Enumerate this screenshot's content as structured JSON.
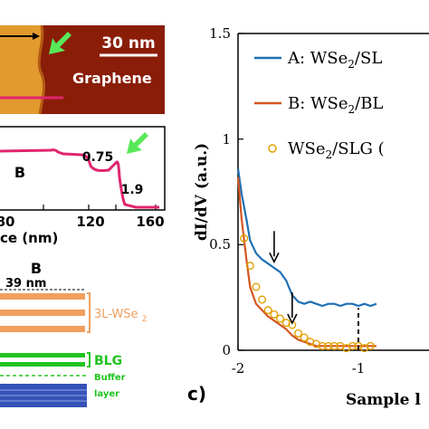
{
  "stm": {
    "scale_label": "30 nm",
    "material_label": "Graphene"
  },
  "profile": {
    "region_label": "B",
    "step_value_1": "0.75",
    "step_value_2": "1.9",
    "x_ticks": [
      "80",
      "120",
      "160"
    ],
    "x_label_fragment": "ce (nm)"
  },
  "schematic": {
    "region_label": "B",
    "width_label": "39 nm",
    "wse2_label": "3L-WSe",
    "wse2_subscript": "2",
    "blg_label": "BLG",
    "buffer_label_1": "Buffer",
    "buffer_label_2": "layer"
  },
  "panel_c": {
    "panel_letter": "c)",
    "ylabel": "dI/dV (a.u.)",
    "xlabel": "Sample l",
    "y_ticks": [
      "0",
      "0.5",
      "1",
      "1.5"
    ],
    "x_ticks": [
      "-2",
      "-1"
    ],
    "legend": [
      {
        "prefix": "A: WSe",
        "sub": "2",
        "suffix": "/SL"
      },
      {
        "prefix": "B: WSe",
        "sub": "2",
        "suffix": "/BL"
      },
      {
        "prefix": "WSe",
        "sub": "2",
        "suffix": "/SLG ("
      }
    ]
  },
  "chart_data": {
    "type": "line",
    "xlabel": "Sample l",
    "ylabel": "dI/dV (a.u.)",
    "xlim": [
      -2,
      -0.85
    ],
    "ylim": [
      0,
      1.5
    ],
    "series": [
      {
        "name": "A: WSe2/SL",
        "color": "#1f6fb4",
        "x": [
          -2.0,
          -1.97,
          -1.93,
          -1.9,
          -1.85,
          -1.8,
          -1.75,
          -1.7,
          -1.65,
          -1.6,
          -1.55,
          -1.5,
          -1.45,
          -1.4,
          -1.35,
          -1.3,
          -1.25,
          -1.2,
          -1.15,
          -1.1,
          -1.05,
          -1.0,
          -0.95,
          -0.9,
          -0.85
        ],
        "y": [
          0.86,
          0.74,
          0.62,
          0.52,
          0.46,
          0.43,
          0.41,
          0.39,
          0.37,
          0.33,
          0.26,
          0.23,
          0.22,
          0.23,
          0.22,
          0.21,
          0.22,
          0.22,
          0.21,
          0.22,
          0.22,
          0.21,
          0.22,
          0.21,
          0.22
        ]
      },
      {
        "name": "B: WSe2/BL",
        "color": "#d4561f",
        "x": [
          -2.0,
          -1.97,
          -1.93,
          -1.9,
          -1.85,
          -1.8,
          -1.75,
          -1.7,
          -1.65,
          -1.6,
          -1.55,
          -1.5,
          -1.45,
          -1.4,
          -1.35,
          -1.3,
          -1.25,
          -1.2,
          -1.15,
          -1.1,
          -1.05,
          -1.0,
          -0.95,
          -0.9,
          -0.85
        ],
        "y": [
          0.82,
          0.62,
          0.43,
          0.3,
          0.22,
          0.19,
          0.16,
          0.14,
          0.12,
          0.1,
          0.07,
          0.05,
          0.04,
          0.03,
          0.02,
          0.02,
          0.02,
          0.02,
          0.02,
          0.02,
          0.02,
          0.02,
          0.02,
          0.02,
          0.02
        ]
      },
      {
        "name": "WSe2/SLG",
        "color": "#e0a100",
        "marker": "circle",
        "x": [
          -1.95,
          -1.9,
          -1.85,
          -1.8,
          -1.75,
          -1.7,
          -1.65,
          -1.6,
          -1.55,
          -1.5,
          -1.45,
          -1.4,
          -1.35,
          -1.3,
          -1.25,
          -1.2,
          -1.15,
          -1.1,
          -1.05,
          -1.0,
          -0.95,
          -0.9
        ],
        "y": [
          0.53,
          0.4,
          0.3,
          0.24,
          0.19,
          0.17,
          0.15,
          0.13,
          0.12,
          0.08,
          0.06,
          0.04,
          0.03,
          0.02,
          0.02,
          0.02,
          0.02,
          0.01,
          0.02,
          0.02,
          0.01,
          0.02
        ]
      }
    ],
    "annotations": [
      {
        "type": "arrow",
        "x": -1.7,
        "y": 0.41
      },
      {
        "type": "arrow",
        "x": -1.55,
        "y": 0.12
      },
      {
        "type": "dashed-line",
        "x": -1.0,
        "y": [
          0,
          0.2
        ]
      }
    ]
  },
  "colors": {
    "stm_bg": "#8a1d08",
    "stm_terrace": "#e29a2f",
    "profile_line": "#e0246f",
    "green_arrow": "#59e85a",
    "wse2_layers": "#f0a060",
    "blg_layers": "#22c322",
    "buffer_line": "#22c322",
    "substrate": "#3553b7"
  }
}
